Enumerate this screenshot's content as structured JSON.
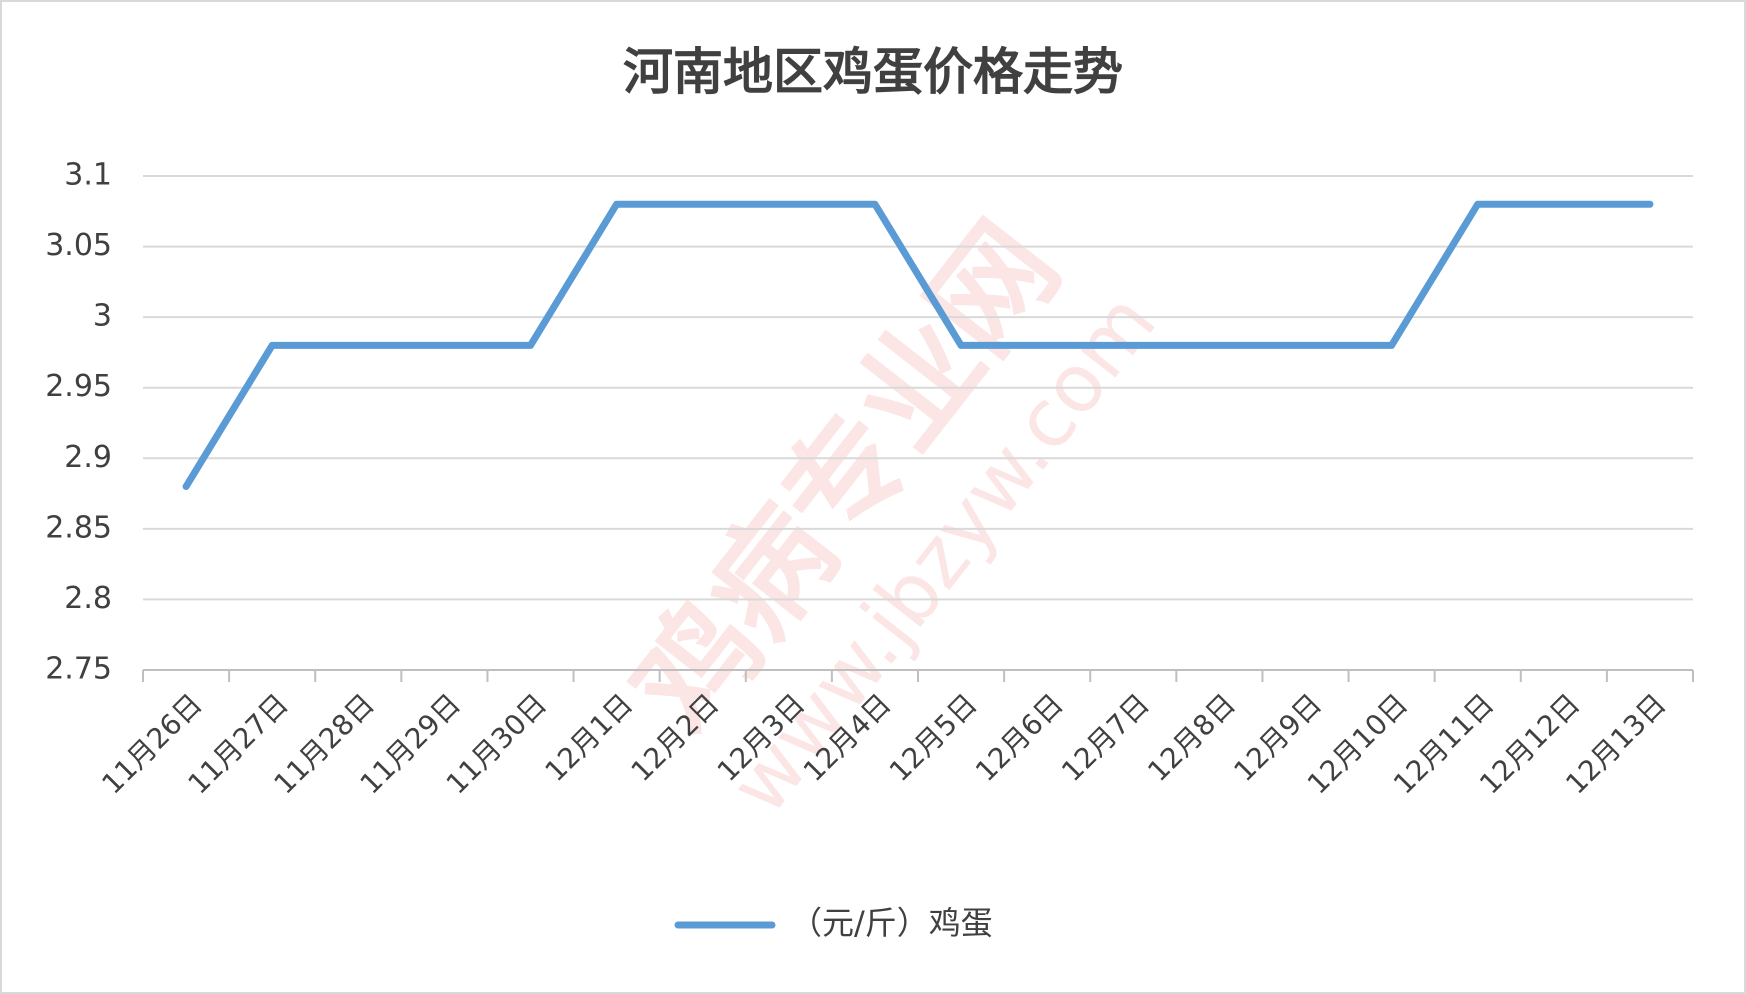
{
  "chart_data": {
    "type": "line",
    "title": "河南地区鸡蛋价格走势",
    "categories": [
      "11月26日",
      "11月27日",
      "11月28日",
      "11月29日",
      "11月30日",
      "12月1日",
      "12月2日",
      "12月3日",
      "12月4日",
      "12月5日",
      "12月6日",
      "12月7日",
      "12月8日",
      "12月9日",
      "12月10日",
      "12月11日",
      "12月12日",
      "12月13日"
    ],
    "series": [
      {
        "name": "（元/斤）鸡蛋",
        "color": "#5b9bd5",
        "values": [
          2.88,
          2.98,
          2.98,
          2.98,
          2.98,
          3.08,
          3.08,
          3.08,
          3.08,
          2.98,
          2.98,
          2.98,
          2.98,
          2.98,
          2.98,
          3.08,
          3.08,
          3.08
        ]
      }
    ],
    "ylim": [
      2.75,
      3.1
    ],
    "yticks": [
      2.75,
      2.8,
      2.85,
      2.9,
      2.95,
      3,
      3.05,
      3.1
    ],
    "grid": true,
    "legend": "bottom",
    "watermark": "鸡病专业网",
    "watermark_url": "www.jbzyw.com"
  }
}
